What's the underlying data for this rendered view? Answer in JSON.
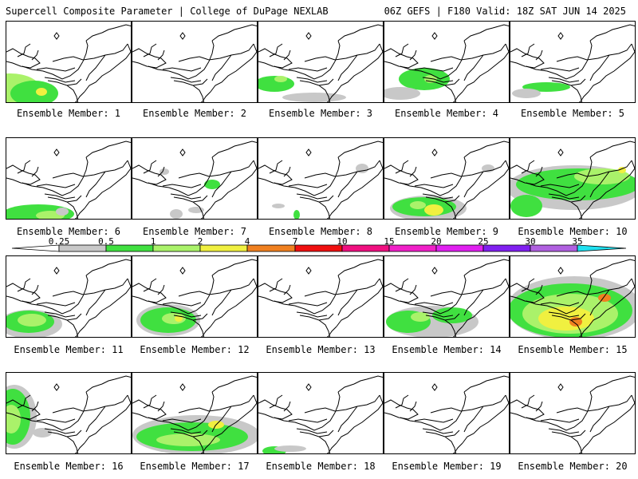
{
  "header": {
    "left": "Supercell Composite Parameter | College of DuPage NEXLAB",
    "right": "06Z GEFS | F180 Valid: 18Z SAT JUN 14 2025"
  },
  "caption_prefix": "Ensemble Member:",
  "members": [
    {
      "number": "1",
      "blobs": [
        {
          "x": 5,
          "y": 85,
          "rx": 38,
          "ry": 20,
          "c": "#aaf26a"
        },
        {
          "x": 35,
          "y": 90,
          "rx": 30,
          "ry": 16,
          "c": "#40e040"
        },
        {
          "x": 44,
          "y": 88,
          "rx": 7,
          "ry": 5,
          "c": "#f0f040"
        }
      ]
    },
    {
      "number": "2",
      "blobs": []
    },
    {
      "number": "3",
      "blobs": [
        {
          "x": 20,
          "y": 78,
          "rx": 25,
          "ry": 10,
          "c": "#40e040"
        },
        {
          "x": 28,
          "y": 72,
          "rx": 8,
          "ry": 4,
          "c": "#aaf26a"
        },
        {
          "x": 70,
          "y": 95,
          "rx": 40,
          "ry": 6,
          "c": "#c8c8c8"
        }
      ]
    },
    {
      "number": "4",
      "blobs": [
        {
          "x": 50,
          "y": 72,
          "rx": 32,
          "ry": 14,
          "c": "#40e040"
        },
        {
          "x": 58,
          "y": 72,
          "rx": 8,
          "ry": 5,
          "c": "#aaf26a"
        },
        {
          "x": 20,
          "y": 90,
          "rx": 25,
          "ry": 8,
          "c": "#c8c8c8"
        }
      ]
    },
    {
      "number": "5",
      "blobs": [
        {
          "x": 45,
          "y": 82,
          "rx": 30,
          "ry": 6,
          "c": "#40e040"
        },
        {
          "x": 20,
          "y": 90,
          "rx": 18,
          "ry": 6,
          "c": "#c8c8c8"
        }
      ]
    },
    {
      "number": "6",
      "blobs": [
        {
          "x": 40,
          "y": 95,
          "rx": 45,
          "ry": 12,
          "c": "#40e040"
        },
        {
          "x": 55,
          "y": 97,
          "rx": 18,
          "ry": 6,
          "c": "#aaf26a"
        },
        {
          "x": 70,
          "y": 92,
          "rx": 8,
          "ry": 5,
          "c": "#c8c8c8"
        }
      ]
    },
    {
      "number": "7",
      "blobs": [
        {
          "x": 100,
          "y": 58,
          "rx": 10,
          "ry": 6,
          "c": "#40e040"
        },
        {
          "x": 55,
          "y": 95,
          "rx": 8,
          "ry": 6,
          "c": "#c8c8c8"
        },
        {
          "x": 80,
          "y": 90,
          "rx": 10,
          "ry": 4,
          "c": "#c8c8c8"
        },
        {
          "x": 40,
          "y": 42,
          "rx": 6,
          "ry": 4,
          "c": "#c8c8c8"
        }
      ]
    },
    {
      "number": "8",
      "blobs": [
        {
          "x": 130,
          "y": 38,
          "rx": 8,
          "ry": 6,
          "c": "#c8c8c8"
        },
        {
          "x": 48,
          "y": 96,
          "rx": 4,
          "ry": 6,
          "c": "#40e040"
        },
        {
          "x": 25,
          "y": 85,
          "rx": 8,
          "ry": 3,
          "c": "#c8c8c8"
        }
      ]
    },
    {
      "number": "9",
      "blobs": [
        {
          "x": 55,
          "y": 88,
          "rx": 48,
          "ry": 16,
          "c": "#c8c8c8"
        },
        {
          "x": 50,
          "y": 86,
          "rx": 40,
          "ry": 12,
          "c": "#40e040"
        },
        {
          "x": 62,
          "y": 90,
          "rx": 12,
          "ry": 7,
          "c": "#f0f040"
        },
        {
          "x": 42,
          "y": 84,
          "rx": 10,
          "ry": 5,
          "c": "#aaf26a"
        },
        {
          "x": 130,
          "y": 38,
          "rx": 8,
          "ry": 5,
          "c": "#c8c8c8"
        }
      ]
    },
    {
      "number": "10",
      "blobs": [
        {
          "x": 80,
          "y": 62,
          "rx": 85,
          "ry": 28,
          "c": "#c8c8c8"
        },
        {
          "x": 85,
          "y": 58,
          "rx": 78,
          "ry": 20,
          "c": "#40e040"
        },
        {
          "x": 115,
          "y": 48,
          "rx": 35,
          "ry": 10,
          "c": "#aaf26a"
        },
        {
          "x": 140,
          "y": 40,
          "rx": 5,
          "ry": 4,
          "c": "#f0f040"
        },
        {
          "x": 20,
          "y": 85,
          "rx": 20,
          "ry": 14,
          "c": "#40e040"
        }
      ]
    },
    {
      "number": "11",
      "blobs": [
        {
          "x": 30,
          "y": 85,
          "rx": 40,
          "ry": 18,
          "c": "#c8c8c8"
        },
        {
          "x": 28,
          "y": 82,
          "rx": 32,
          "ry": 14,
          "c": "#40e040"
        },
        {
          "x": 32,
          "y": 80,
          "rx": 18,
          "ry": 8,
          "c": "#aaf26a"
        }
      ]
    },
    {
      "number": "12",
      "blobs": [
        {
          "x": 45,
          "y": 80,
          "rx": 40,
          "ry": 20,
          "c": "#c8c8c8"
        },
        {
          "x": 45,
          "y": 80,
          "rx": 35,
          "ry": 16,
          "c": "#40e040"
        },
        {
          "x": 52,
          "y": 78,
          "rx": 15,
          "ry": 7,
          "c": "#aaf26a"
        },
        {
          "x": 58,
          "y": 78,
          "rx": 5,
          "ry": 4,
          "c": "#f0f040"
        }
      ]
    },
    {
      "number": "13",
      "blobs": []
    },
    {
      "number": "14",
      "blobs": [
        {
          "x": 60,
          "y": 82,
          "rx": 58,
          "ry": 20,
          "c": "#c8c8c8"
        },
        {
          "x": 30,
          "y": 82,
          "rx": 28,
          "ry": 14,
          "c": "#40e040"
        },
        {
          "x": 45,
          "y": 76,
          "rx": 12,
          "ry": 6,
          "c": "#aaf26a"
        },
        {
          "x": 85,
          "y": 74,
          "rx": 25,
          "ry": 10,
          "c": "#40e040"
        }
      ]
    },
    {
      "number": "15",
      "blobs": [
        {
          "x": 80,
          "y": 65,
          "rx": 85,
          "ry": 40,
          "c": "#c8c8c8"
        },
        {
          "x": 75,
          "y": 68,
          "rx": 78,
          "ry": 34,
          "c": "#40e040"
        },
        {
          "x": 75,
          "y": 72,
          "rx": 60,
          "ry": 25,
          "c": "#aaf26a"
        },
        {
          "x": 70,
          "y": 78,
          "rx": 35,
          "ry": 15,
          "c": "#f0f040"
        },
        {
          "x": 82,
          "y": 82,
          "rx": 8,
          "ry": 6,
          "c": "#f08020"
        },
        {
          "x": 118,
          "y": 52,
          "rx": 8,
          "ry": 5,
          "c": "#f08020"
        }
      ]
    },
    {
      "number": "16",
      "blobs": [
        {
          "x": 10,
          "y": 55,
          "rx": 28,
          "ry": 40,
          "c": "#c8c8c8"
        },
        {
          "x": 8,
          "y": 55,
          "rx": 22,
          "ry": 35,
          "c": "#40e040"
        },
        {
          "x": 6,
          "y": 58,
          "rx": 12,
          "ry": 18,
          "c": "#aaf26a"
        },
        {
          "x": 45,
          "y": 75,
          "rx": 12,
          "ry": 6,
          "c": "#c8c8c8"
        }
      ]
    },
    {
      "number": "17",
      "blobs": [
        {
          "x": 80,
          "y": 78,
          "rx": 80,
          "ry": 25,
          "c": "#c8c8c8"
        },
        {
          "x": 75,
          "y": 80,
          "rx": 70,
          "ry": 18,
          "c": "#40e040"
        },
        {
          "x": 70,
          "y": 84,
          "rx": 40,
          "ry": 8,
          "c": "#aaf26a"
        },
        {
          "x": 105,
          "y": 65,
          "rx": 10,
          "ry": 5,
          "c": "#f0f040"
        }
      ]
    },
    {
      "number": "18",
      "blobs": [
        {
          "x": 20,
          "y": 98,
          "rx": 15,
          "ry": 6,
          "c": "#40e040"
        },
        {
          "x": 40,
          "y": 95,
          "rx": 20,
          "ry": 4,
          "c": "#c8c8c8"
        }
      ]
    },
    {
      "number": "19",
      "blobs": []
    },
    {
      "number": "20",
      "blobs": []
    }
  ],
  "colorbar": {
    "labels": [
      "0.25",
      "0.5",
      "1",
      "2",
      "4",
      "7",
      "10",
      "15",
      "20",
      "25",
      "30",
      "35"
    ],
    "colors": [
      "#ffffff",
      "#c8c8c8",
      "#40e040",
      "#aaf26a",
      "#f0f040",
      "#f08020",
      "#f01010",
      "#f01080",
      "#f020c8",
      "#e020f0",
      "#8020f0",
      "#b060e0",
      "#20e0f0"
    ]
  }
}
